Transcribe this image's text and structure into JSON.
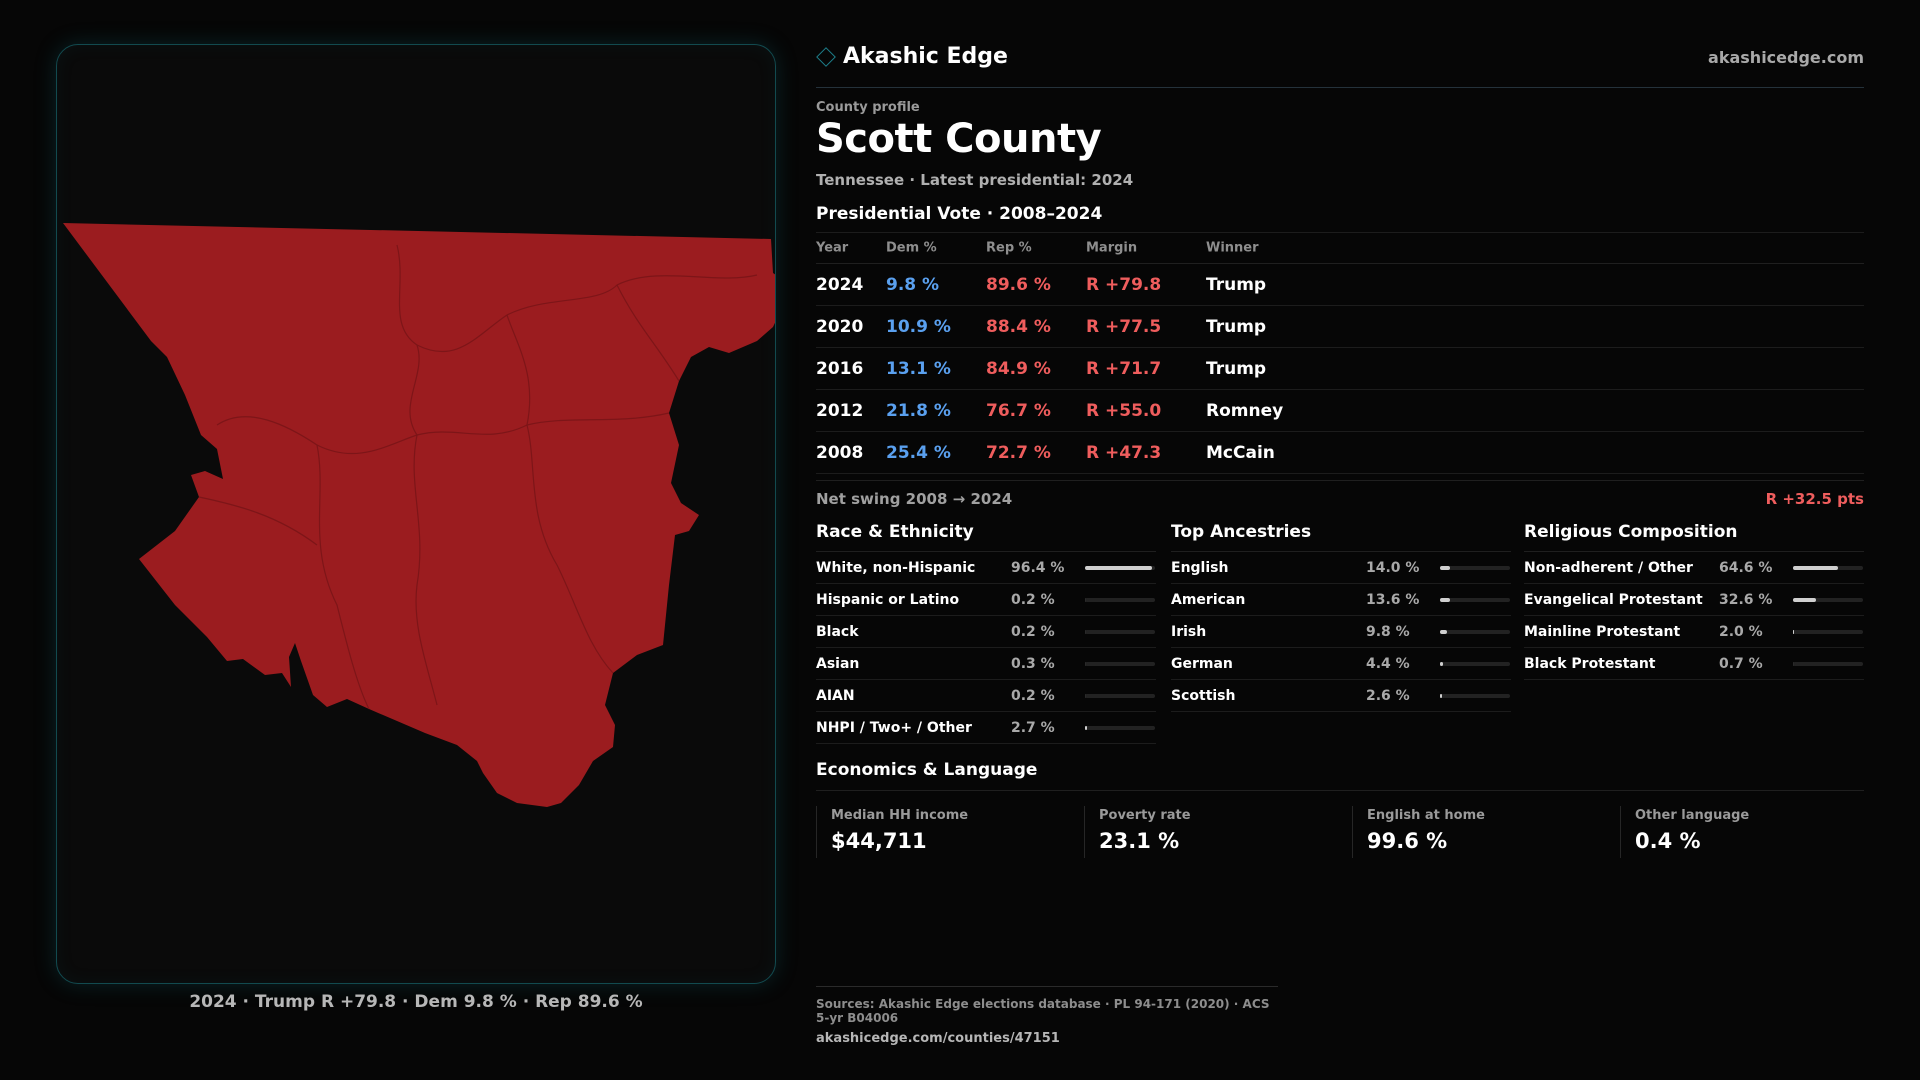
{
  "brand": {
    "name": "Akashic Edge",
    "site": "akashicedge.com",
    "accent": "#1d7e8a"
  },
  "profile": {
    "kicker": "County profile",
    "title": "Scott County",
    "subtitle": "Tennessee · Latest presidential: 2024"
  },
  "vote": {
    "heading": "Presidential Vote · 2008–2024",
    "columns": [
      "Year",
      "Dem %",
      "Rep %",
      "Margin",
      "Winner"
    ],
    "rows": [
      {
        "year": "2024",
        "dem": "9.8 %",
        "rep": "89.6 %",
        "margin": "R +79.8",
        "winner": "Trump"
      },
      {
        "year": "2020",
        "dem": "10.9 %",
        "rep": "88.4 %",
        "margin": "R +77.5",
        "winner": "Trump"
      },
      {
        "year": "2016",
        "dem": "13.1 %",
        "rep": "84.9 %",
        "margin": "R +71.7",
        "winner": "Trump"
      },
      {
        "year": "2012",
        "dem": "21.8 %",
        "rep": "76.7 %",
        "margin": "R +55.0",
        "winner": "Romney"
      },
      {
        "year": "2008",
        "dem": "25.4 %",
        "rep": "72.7 %",
        "margin": "R +47.3",
        "winner": "McCain"
      }
    ],
    "swing_label": "Net swing 2008 → 2024",
    "swing_value": "R +32.5 pts",
    "dem_color": "#5aa0ef",
    "rep_color": "#ef5d5d"
  },
  "race": {
    "heading": "Race & Ethnicity",
    "items": [
      {
        "label": "White, non-Hispanic",
        "value": "96.4 %",
        "pct": 96.4
      },
      {
        "label": "Hispanic or Latino",
        "value": "0.2 %",
        "pct": 0.2
      },
      {
        "label": "Black",
        "value": "0.2 %",
        "pct": 0.2
      },
      {
        "label": "Asian",
        "value": "0.3 %",
        "pct": 0.3
      },
      {
        "label": "AIAN",
        "value": "0.2 %",
        "pct": 0.2
      },
      {
        "label": "NHPI / Two+ / Other",
        "value": "2.7 %",
        "pct": 2.7
      }
    ]
  },
  "ancestry": {
    "heading": "Top Ancestries",
    "items": [
      {
        "label": "English",
        "value": "14.0 %",
        "pct": 14.0
      },
      {
        "label": "American",
        "value": "13.6 %",
        "pct": 13.6
      },
      {
        "label": "Irish",
        "value": "9.8 %",
        "pct": 9.8
      },
      {
        "label": "German",
        "value": "4.4 %",
        "pct": 4.4
      },
      {
        "label": "Scottish",
        "value": "2.6 %",
        "pct": 2.6
      }
    ]
  },
  "religion": {
    "heading": "Religious Composition",
    "items": [
      {
        "label": "Non-adherent / Other",
        "value": "64.6 %",
        "pct": 64.6
      },
      {
        "label": "Evangelical Protestant",
        "value": "32.6 %",
        "pct": 32.6
      },
      {
        "label": "Mainline Protestant",
        "value": "2.0 %",
        "pct": 2.0
      },
      {
        "label": "Black Protestant",
        "value": "0.7 %",
        "pct": 0.7
      }
    ]
  },
  "economics": {
    "heading": "Economics & Language",
    "items": [
      {
        "label": "Median HH income",
        "value": "$44,711"
      },
      {
        "label": "Poverty rate",
        "value": "23.1 %"
      },
      {
        "label": "English at home",
        "value": "99.6 %"
      },
      {
        "label": "Other language",
        "value": "0.4 %"
      }
    ]
  },
  "map": {
    "caption": "2024 · Trump R +79.8 · Dem 9.8 % · Rep 89.6 %",
    "fill": "#9b1c1f"
  },
  "sources": {
    "text": "Sources: Akashic Edge elections database · PL 94-171 (2020) · ACS 5-yr B04006",
    "url": "akashicedge.com/counties/47151"
  }
}
